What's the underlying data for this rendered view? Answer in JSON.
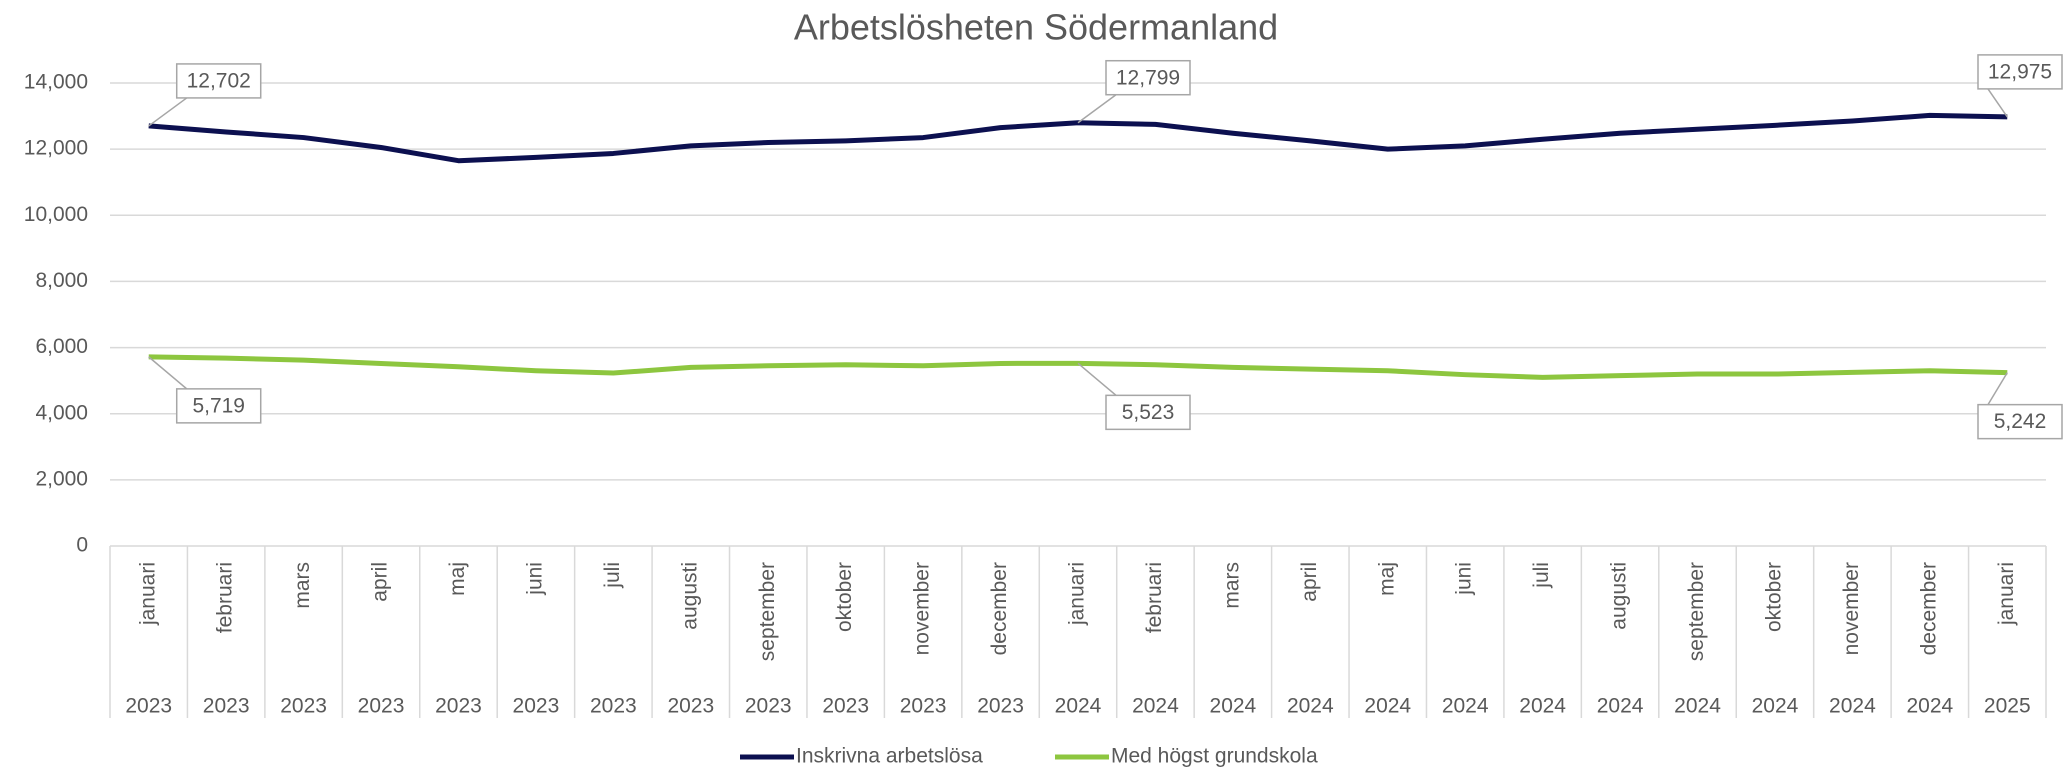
{
  "chart_data": {
    "type": "line",
    "title": "Arbetslösheten Södermanland",
    "categories": [
      "januari",
      "februari",
      "mars",
      "april",
      "maj",
      "juni",
      "juli",
      "augusti",
      "september",
      "oktober",
      "november",
      "december",
      "januari",
      "februari",
      "mars",
      "april",
      "maj",
      "juni",
      "juli",
      "augusti",
      "september",
      "oktober",
      "november",
      "december",
      "januari"
    ],
    "category_years": [
      "2023",
      "2023",
      "2023",
      "2023",
      "2023",
      "2023",
      "2023",
      "2023",
      "2023",
      "2023",
      "2023",
      "2023",
      "2024",
      "2024",
      "2024",
      "2024",
      "2024",
      "2024",
      "2024",
      "2024",
      "2024",
      "2024",
      "2024",
      "2024",
      "2025"
    ],
    "series": [
      {
        "name": "Inskrivna arbetslösa",
        "color": "#0c1050",
        "values": [
          12702,
          12520,
          12350,
          12050,
          11650,
          11750,
          11870,
          12100,
          12200,
          12250,
          12350,
          12650,
          12799,
          12750,
          12480,
          12250,
          12000,
          12100,
          12300,
          12480,
          12600,
          12720,
          12850,
          13020,
          12975
        ],
        "value_labels": [
          "12,702",
          null,
          null,
          null,
          null,
          null,
          null,
          null,
          null,
          null,
          null,
          null,
          "12,799",
          null,
          null,
          null,
          null,
          null,
          null,
          null,
          null,
          null,
          null,
          null,
          "12,975"
        ]
      },
      {
        "name": "Med högst grundskola",
        "color": "#8dc63f",
        "values": [
          5719,
          5680,
          5620,
          5520,
          5420,
          5300,
          5230,
          5400,
          5450,
          5480,
          5450,
          5520,
          5523,
          5480,
          5400,
          5350,
          5300,
          5180,
          5100,
          5150,
          5200,
          5200,
          5250,
          5300,
          5242
        ],
        "value_labels": [
          "5,719",
          null,
          null,
          null,
          null,
          null,
          null,
          null,
          null,
          null,
          null,
          null,
          "5,523",
          null,
          null,
          null,
          null,
          null,
          null,
          null,
          null,
          null,
          null,
          null,
          "5,242"
        ]
      }
    ],
    "ylim": [
      0,
      14000
    ],
    "yticks": [
      0,
      {
        "value": 2000,
        "label": "2,000"
      },
      {
        "value": 4000,
        "label": "4,000"
      },
      {
        "value": 6000,
        "label": "6,000"
      },
      {
        "value": 8000,
        "label": "8,000"
      },
      {
        "value": 10000,
        "label": "10,000"
      },
      {
        "value": 12000,
        "label": "12,000"
      },
      {
        "value": 14000,
        "label": "14,000"
      }
    ],
    "grid": true,
    "legend": "bottom"
  }
}
